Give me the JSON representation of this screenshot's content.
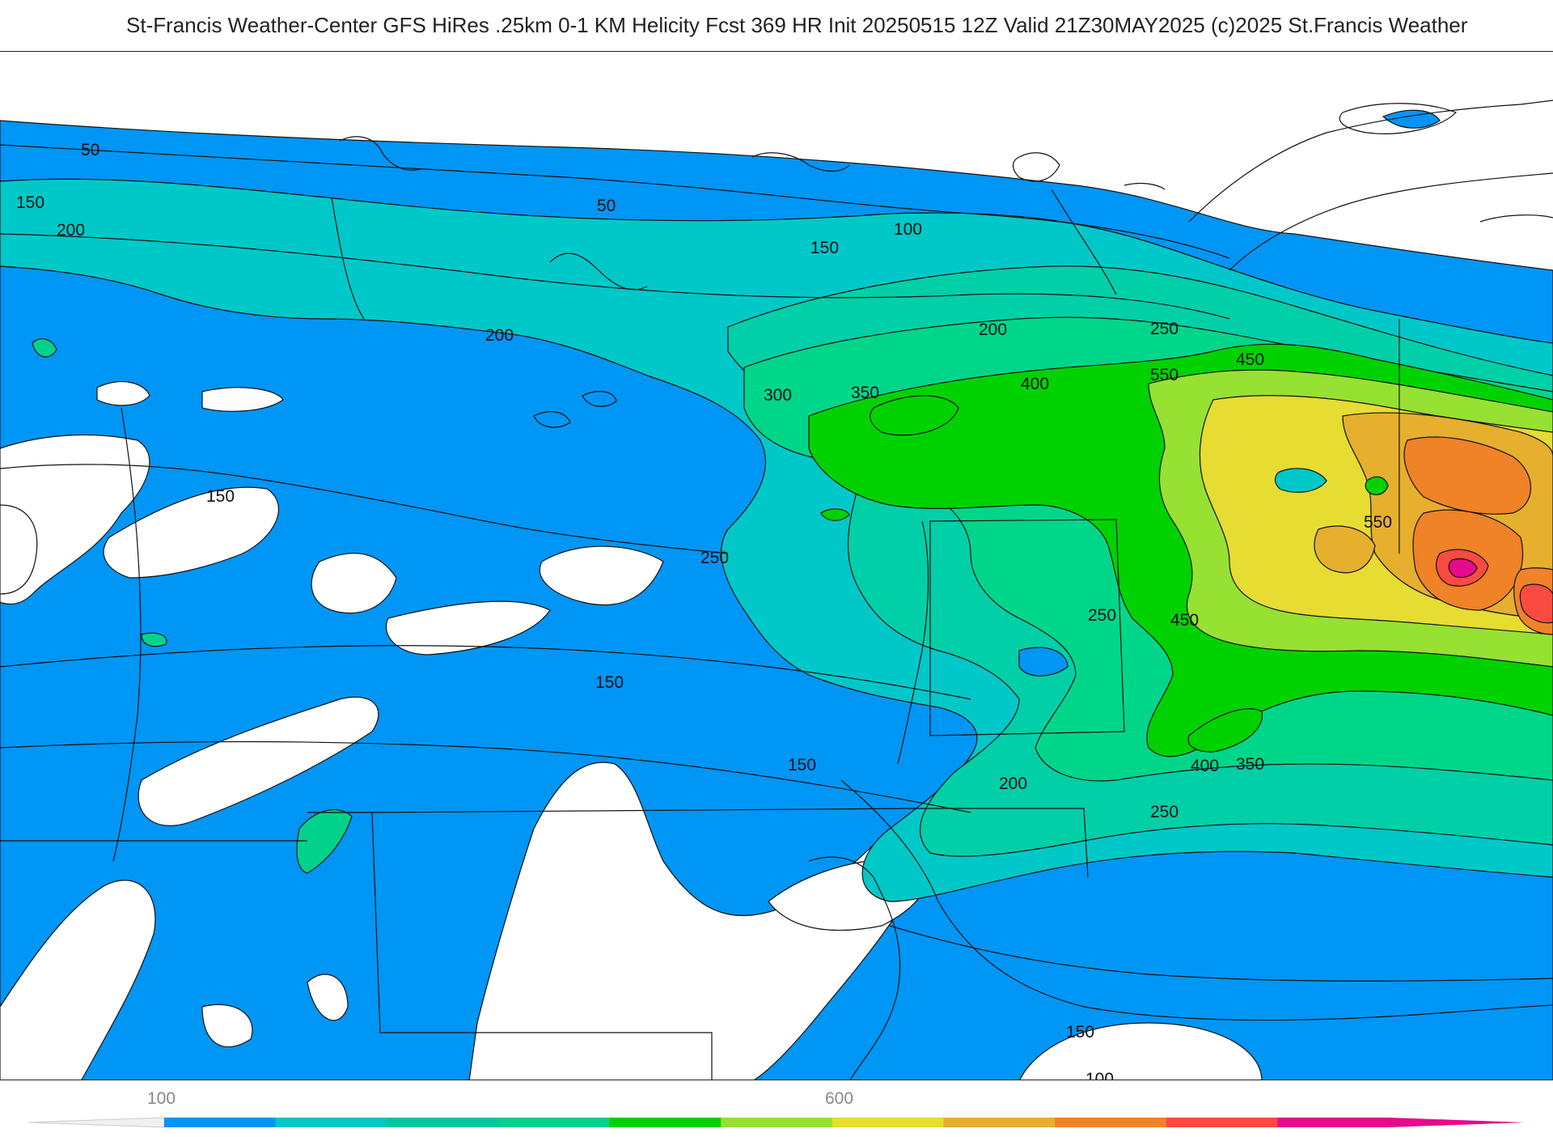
{
  "header": {
    "title": "St-Francis Weather-Center GFS HiRes .25km 0-1 KM Helicity Fcst 369 HR Init 20250515 12Z  Valid 21Z30MAY2025    (c)2025 St.Francis Weather"
  },
  "map": {
    "field": "0-1 KM Helicity",
    "fill_colors": [
      "#ffffff",
      "#0096f5",
      "#00c8c8",
      "#00d28c",
      "#00d200",
      "#96e132",
      "#e6dc32",
      "#e6af2d",
      "#f08228",
      "#fa4b41",
      "#e60a8c"
    ],
    "line_color": "#111111",
    "contour_labels": [
      {
        "text": "50"
      },
      {
        "text": "50"
      },
      {
        "text": "100"
      },
      {
        "text": "150"
      },
      {
        "text": "150"
      },
      {
        "text": "200"
      },
      {
        "text": "200"
      },
      {
        "text": "200"
      },
      {
        "text": "250"
      },
      {
        "text": "300"
      },
      {
        "text": "350"
      },
      {
        "text": "400"
      },
      {
        "text": "450"
      },
      {
        "text": "550"
      },
      {
        "text": "150"
      },
      {
        "text": "250"
      },
      {
        "text": "550"
      },
      {
        "text": "450"
      },
      {
        "text": "150"
      },
      {
        "text": "150"
      },
      {
        "text": "200"
      },
      {
        "text": "400"
      },
      {
        "text": "350"
      },
      {
        "text": "250"
      },
      {
        "text": "150"
      },
      {
        "text": "100"
      },
      {
        "text": "250"
      }
    ]
  },
  "colorbar": {
    "labels": [
      {
        "text": "100",
        "value": 100
      },
      {
        "text": "600",
        "value": 600
      }
    ],
    "colors": [
      "#0096f5",
      "#00c8c8",
      "#00c8a0",
      "#00d28c",
      "#00d200",
      "#96e132",
      "#e6dc32",
      "#e6af2d",
      "#f08228",
      "#fa4b41",
      "#e60a8c"
    ]
  }
}
